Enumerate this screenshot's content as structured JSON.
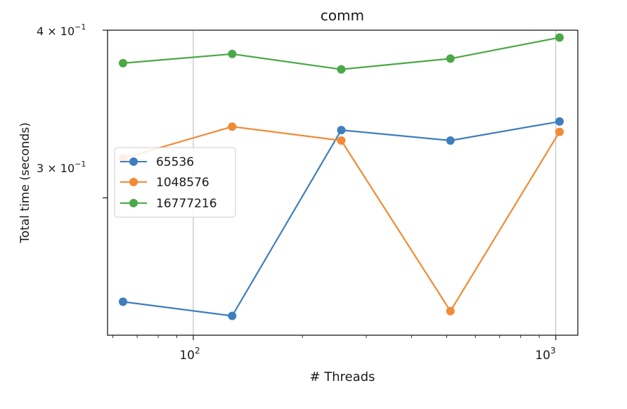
{
  "chart_data": {
    "type": "line",
    "title": "comm",
    "xlabel": "# Threads",
    "ylabel": "Total time (seconds)",
    "x_scale": "log",
    "y_scale": "log",
    "xlim": [
      58,
      1150
    ],
    "ylim": [
      0.237,
      0.4
    ],
    "grid": "vertical major lines at x ticks",
    "legend_placement": "center-left",
    "x_ticks": [
      {
        "value": 100,
        "base": "10",
        "exp": "2"
      },
      {
        "value": 1000,
        "base": "10",
        "exp": "3"
      }
    ],
    "y_ticks": [
      {
        "value": 0.4,
        "mant": "4",
        "base": "10",
        "exp": "−1"
      },
      {
        "value": 0.3,
        "mant": "3",
        "base": "10",
        "exp": "−1"
      }
    ],
    "x": [
      64,
      128,
      256,
      512,
      1024
    ],
    "series": [
      {
        "name": "65536",
        "color": "#3d7ebf",
        "values": [
          0.251,
          0.245,
          0.337,
          0.331,
          0.342
        ]
      },
      {
        "name": "1048576",
        "color": "#f28a36",
        "values": [
          0.321,
          0.339,
          0.331,
          0.247,
          0.336
        ]
      },
      {
        "name": "16777216",
        "color": "#4aa845",
        "values": [
          0.378,
          0.384,
          0.374,
          0.381,
          0.395
        ]
      }
    ]
  }
}
